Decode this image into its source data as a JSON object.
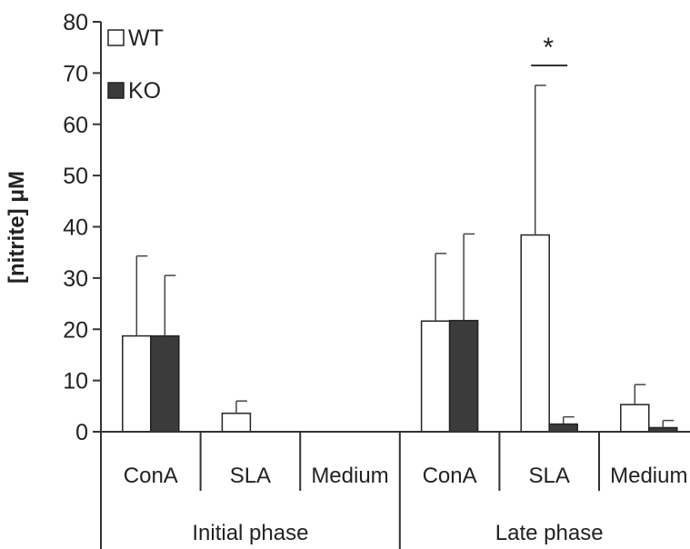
{
  "chart_data": {
    "type": "bar",
    "ylabel": "[nitrite] μM",
    "ylim": [
      0,
      80
    ],
    "yticks": [
      0,
      10,
      20,
      30,
      40,
      50,
      60,
      70,
      80
    ],
    "categories": [
      "ConA",
      "SLA",
      "Medium",
      "ConA",
      "SLA",
      "Medium"
    ],
    "groups": [
      {
        "label": "Initial phase",
        "categories": [
          "ConA",
          "SLA",
          "Medium"
        ]
      },
      {
        "label": "Late phase",
        "categories": [
          "ConA",
          "SLA",
          "Medium"
        ]
      }
    ],
    "series": [
      {
        "name": "WT",
        "color": "#ffffff",
        "values": [
          18.7,
          3.6,
          0,
          21.6,
          38.4,
          5.3
        ],
        "errors": [
          15.6,
          2.4,
          0,
          13.2,
          29.2,
          3.9
        ]
      },
      {
        "name": "KO",
        "color": "#3b3b3b",
        "values": [
          18.7,
          0,
          0,
          21.7,
          1.5,
          0.8
        ],
        "errors": [
          11.8,
          0,
          0,
          16.9,
          1.4,
          1.4
        ]
      }
    ],
    "legend": "top-left",
    "grid": false,
    "annotations": [
      {
        "text": "*",
        "category_index": 4
      }
    ]
  }
}
